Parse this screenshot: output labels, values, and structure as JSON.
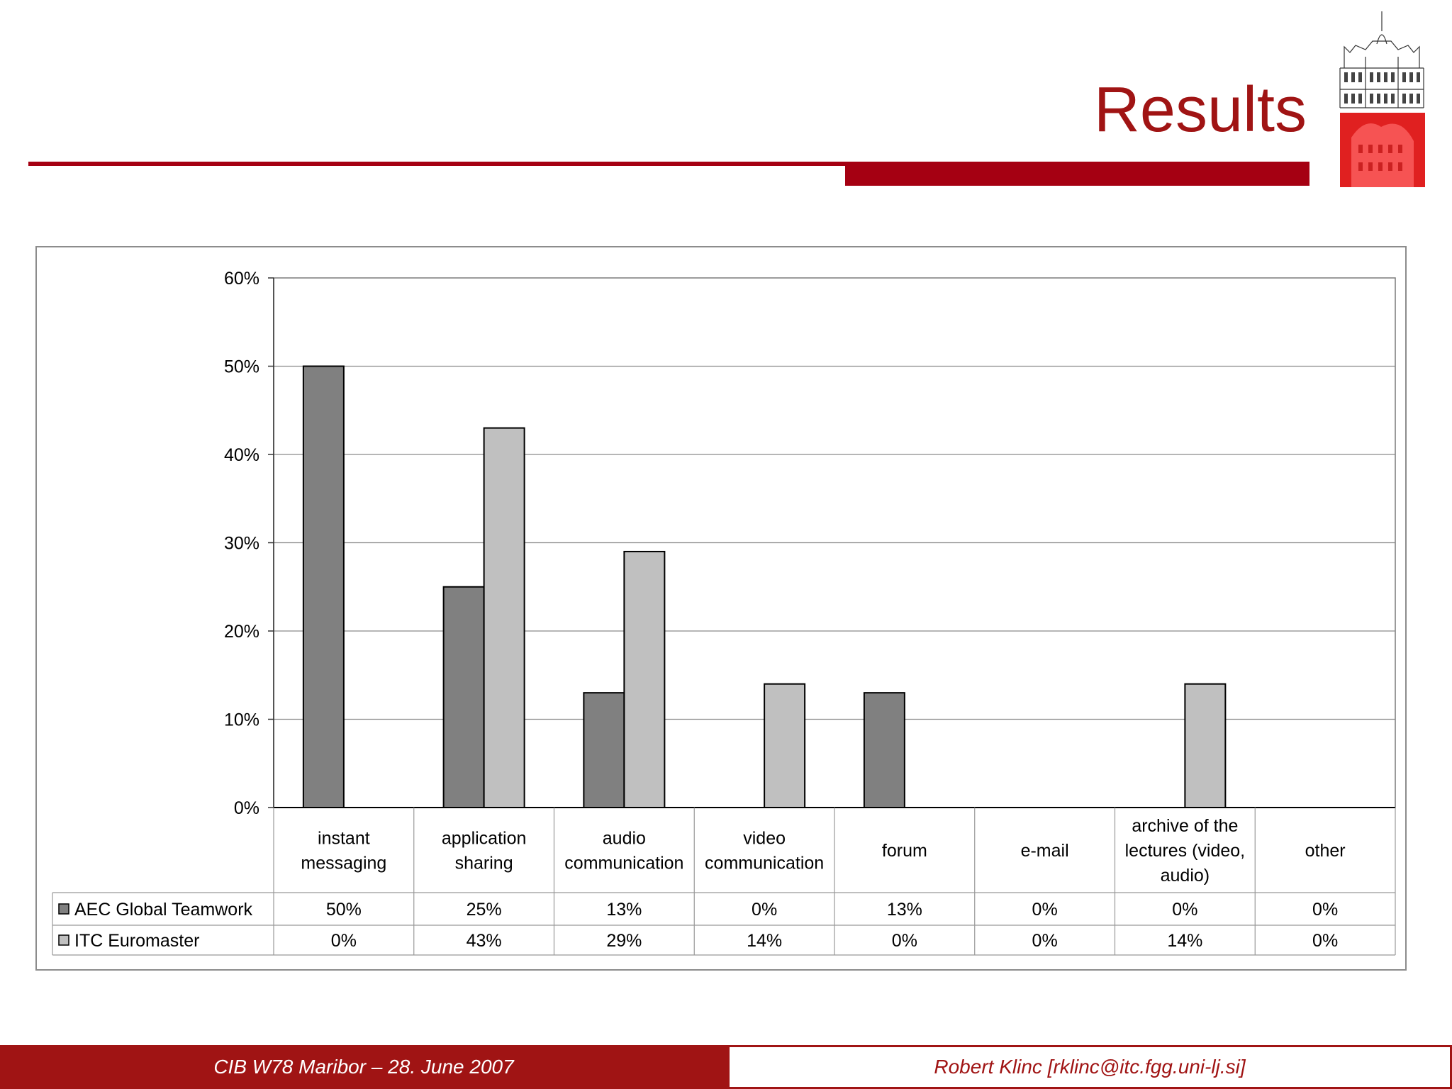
{
  "slide": {
    "title": "Results"
  },
  "colors": {
    "brand_red": "#a01414",
    "rule_red": "#a50012",
    "series_aec": "#808080",
    "series_itc": "#c0c0c0",
    "gridline": "#8a8a8a"
  },
  "footer": {
    "left_text": "CIB W78 Maribor – 28. June 2007",
    "right_text": "Robert Klinc [rklinc@itc.fgg.uni-lj.si]"
  },
  "chart_data": {
    "type": "bar",
    "categories": [
      [
        "instant",
        "messaging"
      ],
      [
        "application",
        "sharing"
      ],
      [
        "audio",
        "communication"
      ],
      [
        "video",
        "communication"
      ],
      [
        "forum"
      ],
      [
        "e-mail"
      ],
      [
        "archive of the",
        "lectures (video,",
        "audio)"
      ],
      [
        "other"
      ]
    ],
    "series": [
      {
        "name": "AEC Global Teamwork",
        "values": [
          50,
          25,
          13,
          0,
          13,
          0,
          0,
          0
        ],
        "color": "#808080"
      },
      {
        "name": "ITC Euromaster",
        "values": [
          0,
          43,
          29,
          14,
          0,
          0,
          14,
          0
        ],
        "color": "#c0c0c0"
      }
    ],
    "ylim": [
      0,
      60
    ],
    "yticks": [
      "0%",
      "10%",
      "20%",
      "30%",
      "40%",
      "50%",
      "60%"
    ],
    "grid": true,
    "data_table": true,
    "legend": "data-table-left",
    "unit": "%"
  }
}
